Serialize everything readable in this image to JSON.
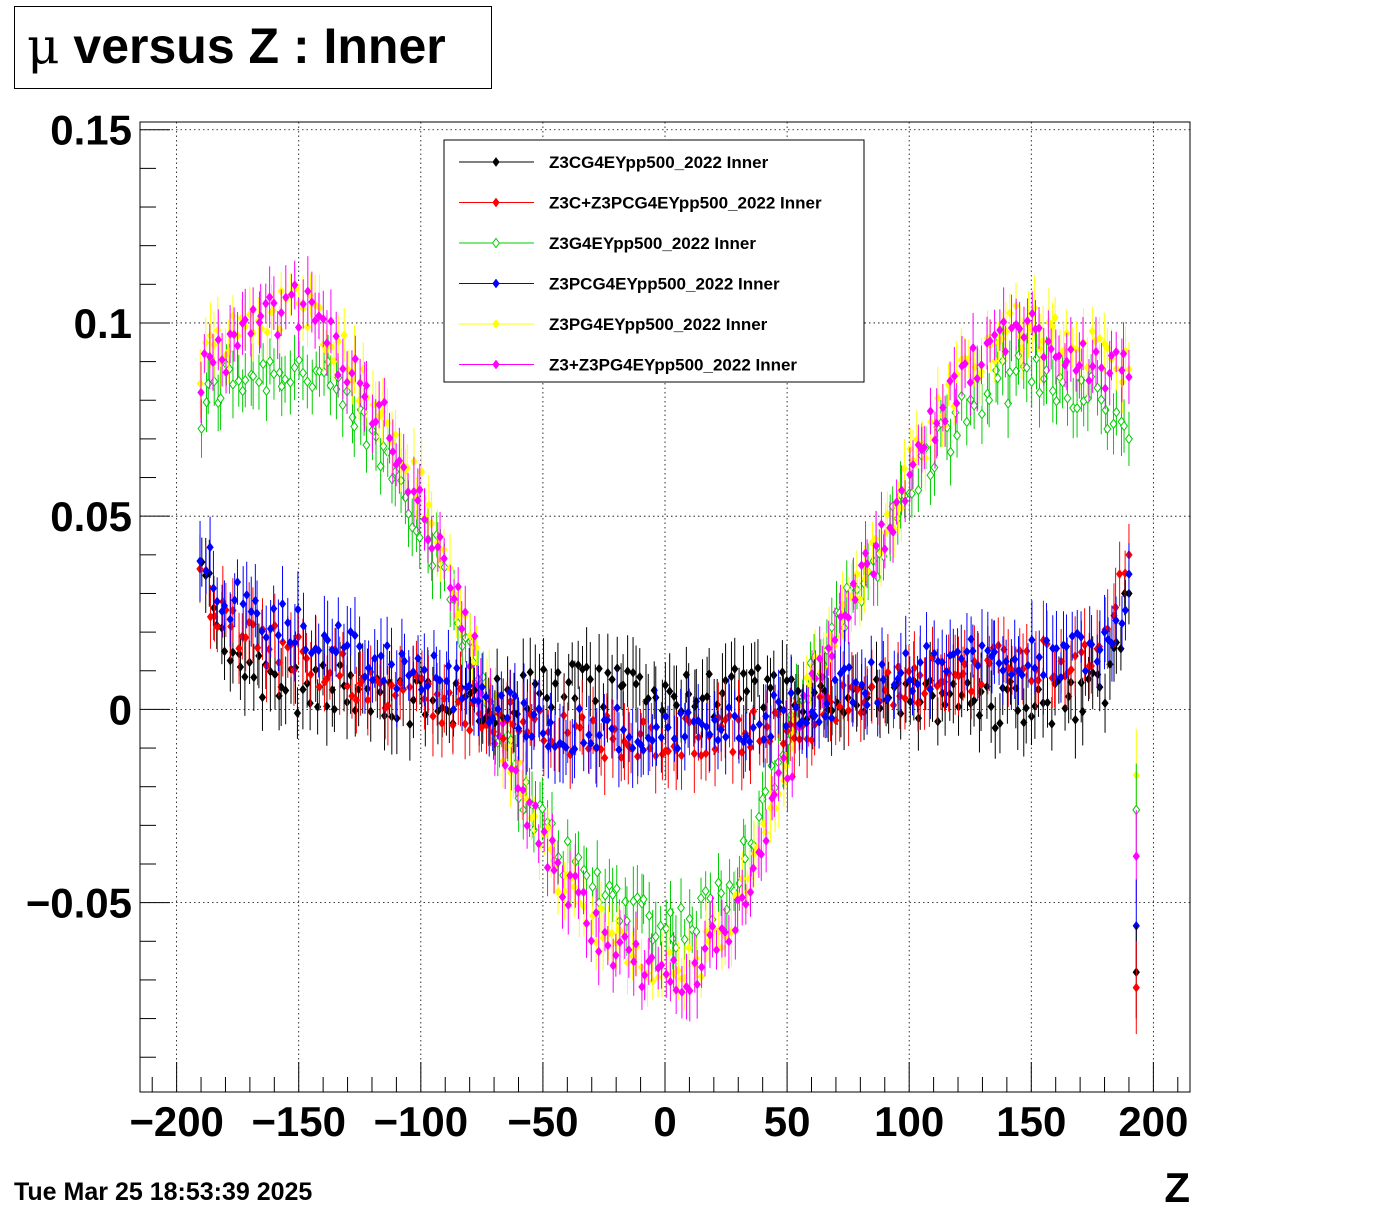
{
  "title": {
    "mu": "μ",
    "rest": " versus Z : Inner"
  },
  "datestamp": "Tue Mar 25 18:53:39 2025",
  "chart_data": {
    "type": "scatter",
    "title": "μ versus Z : Inner",
    "xlabel": "Z",
    "ylabel": "",
    "xlim": [
      -215,
      215
    ],
    "ylim": [
      -0.099,
      0.152
    ],
    "grid": true,
    "legend_position": "top-center",
    "x_ticks": [
      {
        "value": -200,
        "label": "−200"
      },
      {
        "value": -150,
        "label": "−150"
      },
      {
        "value": -100,
        "label": "−100"
      },
      {
        "value": -50,
        "label": "−50"
      },
      {
        "value": 0,
        "label": "0"
      },
      {
        "value": 50,
        "label": "50"
      },
      {
        "value": 100,
        "label": "100"
      },
      {
        "value": 150,
        "label": "150"
      },
      {
        "value": 200,
        "label": "200"
      }
    ],
    "y_ticks": [
      {
        "value": -0.05,
        "label": "−0.05"
      },
      {
        "value": 0,
        "label": "0"
      },
      {
        "value": 0.05,
        "label": "0.05"
      },
      {
        "value": 0.1,
        "label": "0.1"
      },
      {
        "value": 0.15,
        "label": "0.15"
      }
    ],
    "x_sampled": [
      -190,
      -185,
      -180,
      -175,
      -170,
      -165,
      -160,
      -155,
      -150,
      -145,
      -140,
      -135,
      -130,
      -125,
      -120,
      -115,
      -110,
      -105,
      -100,
      -95,
      -90,
      -85,
      -80,
      -75,
      -70,
      -65,
      -60,
      -55,
      -50,
      -45,
      -40,
      -35,
      -30,
      -25,
      -20,
      -15,
      -10,
      -5,
      0,
      5,
      10,
      15,
      20,
      25,
      30,
      35,
      40,
      45,
      50,
      55,
      60,
      65,
      70,
      75,
      80,
      85,
      90,
      95,
      100,
      105,
      110,
      115,
      120,
      125,
      130,
      135,
      140,
      145,
      150,
      155,
      160,
      165,
      170,
      175,
      180,
      185,
      190
    ],
    "series": [
      {
        "name": "Z3CG4EYpp500_2022 Inner",
        "color": "#000000",
        "marker": "filled-diamond",
        "err": 0.008,
        "y": [
          0.034,
          0.027,
          0.02,
          0.014,
          0.01,
          0.008,
          0.006,
          0.005,
          0.005,
          0.005,
          0.006,
          0.006,
          0.005,
          0.004,
          0.003,
          0.003,
          0.003,
          0.002,
          0.002,
          0.002,
          0.002,
          0.002,
          0.001,
          0.002,
          0.002,
          0.003,
          0.004,
          0.005,
          0.006,
          0.006,
          0.006,
          0.006,
          0.005,
          0.005,
          0.005,
          0.006,
          0.006,
          0.005,
          0.004,
          0.004,
          0.004,
          0.003,
          0.004,
          0.004,
          0.005,
          0.005,
          0.005,
          0.004,
          0.004,
          0.003,
          0.002,
          0.001,
          0.0,
          0.001,
          0.001,
          0.002,
          0.002,
          0.003,
          0.002,
          0.002,
          0.002,
          0.002,
          0.002,
          0.002,
          0.002,
          0.001,
          0.002,
          0.002,
          0.002,
          0.002,
          0.002,
          0.002,
          0.002,
          0.004,
          0.006,
          0.013,
          0.03
        ]
      },
      {
        "name": "Z3C+Z3PCG4EYpp500_2022 Inner",
        "color": "#ff0000",
        "marker": "filled-diamond",
        "err": 0.008,
        "y": [
          0.032,
          0.027,
          0.022,
          0.019,
          0.018,
          0.017,
          0.016,
          0.015,
          0.014,
          0.013,
          0.011,
          0.01,
          0.009,
          0.008,
          0.007,
          0.006,
          0.005,
          0.004,
          0.003,
          0.002,
          0.001,
          0.001,
          0.0,
          -0.001,
          -0.002,
          -0.003,
          -0.004,
          -0.005,
          -0.006,
          -0.006,
          -0.007,
          -0.007,
          -0.007,
          -0.007,
          -0.007,
          -0.007,
          -0.008,
          -0.008,
          -0.008,
          -0.008,
          -0.008,
          -0.007,
          -0.007,
          -0.007,
          -0.007,
          -0.006,
          -0.006,
          -0.005,
          -0.004,
          -0.003,
          -0.002,
          -0.001,
          0.0,
          0.001,
          0.002,
          0.003,
          0.004,
          0.005,
          0.006,
          0.007,
          0.008,
          0.008,
          0.009,
          0.01,
          0.011,
          0.012,
          0.013,
          0.013,
          0.013,
          0.013,
          0.013,
          0.013,
          0.013,
          0.015,
          0.018,
          0.024,
          0.04
        ]
      },
      {
        "name": "Z3G4EYpp500_2022 Inner",
        "color": "#00cc00",
        "marker": "open-diamond",
        "err": 0.007,
        "y": [
          0.075,
          0.082,
          0.085,
          0.086,
          0.087,
          0.087,
          0.088,
          0.088,
          0.088,
          0.087,
          0.085,
          0.082,
          0.078,
          0.074,
          0.07,
          0.066,
          0.061,
          0.055,
          0.049,
          0.042,
          0.034,
          0.025,
          0.016,
          0.007,
          -0.002,
          -0.01,
          -0.018,
          -0.025,
          -0.03,
          -0.035,
          -0.039,
          -0.042,
          -0.045,
          -0.047,
          -0.049,
          -0.05,
          -0.052,
          -0.054,
          -0.056,
          -0.056,
          -0.055,
          -0.053,
          -0.05,
          -0.046,
          -0.04,
          -0.033,
          -0.025,
          -0.016,
          -0.008,
          0.0,
          0.008,
          0.015,
          0.02,
          0.026,
          0.032,
          0.038,
          0.044,
          0.05,
          0.056,
          0.062,
          0.067,
          0.071,
          0.075,
          0.079,
          0.081,
          0.083,
          0.085,
          0.086,
          0.086,
          0.086,
          0.085,
          0.084,
          0.082,
          0.081,
          0.079,
          0.075,
          0.07
        ]
      },
      {
        "name": "Z3PCG4EYpp500_2022 Inner",
        "color": "#0000ff",
        "marker": "filled-diamond",
        "err": 0.008,
        "y": [
          0.04,
          0.034,
          0.03,
          0.027,
          0.025,
          0.023,
          0.022,
          0.021,
          0.02,
          0.019,
          0.018,
          0.017,
          0.016,
          0.014,
          0.013,
          0.012,
          0.011,
          0.01,
          0.009,
          0.008,
          0.007,
          0.005,
          0.003,
          0.001,
          0.0,
          -0.001,
          -0.002,
          -0.003,
          -0.004,
          -0.005,
          -0.005,
          -0.005,
          -0.005,
          -0.005,
          -0.005,
          -0.006,
          -0.006,
          -0.006,
          -0.006,
          -0.006,
          -0.005,
          -0.005,
          -0.005,
          -0.004,
          -0.004,
          -0.004,
          -0.003,
          -0.002,
          -0.001,
          0.001,
          0.002,
          0.003,
          0.004,
          0.005,
          0.006,
          0.007,
          0.008,
          0.009,
          0.01,
          0.011,
          0.011,
          0.012,
          0.013,
          0.013,
          0.014,
          0.014,
          0.014,
          0.014,
          0.014,
          0.014,
          0.014,
          0.014,
          0.015,
          0.017,
          0.02,
          0.024,
          0.035
        ]
      },
      {
        "name": "Z3PG4EYpp500_2022 Inner",
        "color": "#ffff00",
        "marker": "filled-diamond",
        "err": 0.007,
        "y": [
          0.09,
          0.094,
          0.097,
          0.098,
          0.1,
          0.101,
          0.103,
          0.104,
          0.104,
          0.103,
          0.1,
          0.096,
          0.091,
          0.085,
          0.08,
          0.075,
          0.07,
          0.063,
          0.056,
          0.047,
          0.038,
          0.028,
          0.018,
          0.008,
          -0.002,
          -0.011,
          -0.019,
          -0.027,
          -0.034,
          -0.04,
          -0.045,
          -0.049,
          -0.053,
          -0.057,
          -0.061,
          -0.064,
          -0.066,
          -0.067,
          -0.068,
          -0.067,
          -0.066,
          -0.064,
          -0.061,
          -0.057,
          -0.051,
          -0.043,
          -0.034,
          -0.024,
          -0.014,
          -0.004,
          0.006,
          0.014,
          0.021,
          0.028,
          0.034,
          0.041,
          0.048,
          0.055,
          0.062,
          0.069,
          0.074,
          0.079,
          0.084,
          0.089,
          0.093,
          0.096,
          0.098,
          0.099,
          0.099,
          0.098,
          0.096,
          0.095,
          0.094,
          0.092,
          0.09,
          0.089,
          0.088
        ]
      },
      {
        "name": "Z3+Z3PG4EYpp500_2022 Inner",
        "color": "#ff00ff",
        "marker": "filled-diamond",
        "err": 0.007,
        "y": [
          0.088,
          0.09,
          0.093,
          0.096,
          0.098,
          0.1,
          0.102,
          0.104,
          0.104,
          0.103,
          0.099,
          0.094,
          0.089,
          0.084,
          0.079,
          0.074,
          0.068,
          0.061,
          0.054,
          0.046,
          0.037,
          0.027,
          0.017,
          0.007,
          -0.003,
          -0.012,
          -0.02,
          -0.028,
          -0.035,
          -0.041,
          -0.046,
          -0.05,
          -0.054,
          -0.058,
          -0.062,
          -0.065,
          -0.067,
          -0.068,
          -0.069,
          -0.068,
          -0.067,
          -0.065,
          -0.062,
          -0.058,
          -0.052,
          -0.044,
          -0.035,
          -0.025,
          -0.015,
          -0.005,
          0.005,
          0.013,
          0.02,
          0.027,
          0.033,
          0.04,
          0.047,
          0.054,
          0.061,
          0.068,
          0.073,
          0.078,
          0.083,
          0.088,
          0.092,
          0.095,
          0.097,
          0.098,
          0.098,
          0.097,
          0.095,
          0.093,
          0.092,
          0.09,
          0.088,
          0.087,
          0.086
        ]
      }
    ],
    "edge_outliers": [
      {
        "series": "Z3PG4EYpp500_2022 Inner",
        "x": 193,
        "y": -0.017
      },
      {
        "series": "Z3G4EYpp500_2022 Inner",
        "x": 193,
        "y": -0.026
      },
      {
        "series": "Z3+Z3PG4EYpp500_2022 Inner",
        "x": 193,
        "y": -0.038
      },
      {
        "series": "Z3PCG4EYpp500_2022 Inner",
        "x": 193,
        "y": -0.056
      },
      {
        "series": "Z3CG4EYpp500_2022 Inner",
        "x": 193,
        "y": -0.068
      },
      {
        "series": "Z3C+Z3PCG4EYpp500_2022 Inner",
        "x": 193,
        "y": -0.072
      }
    ]
  }
}
